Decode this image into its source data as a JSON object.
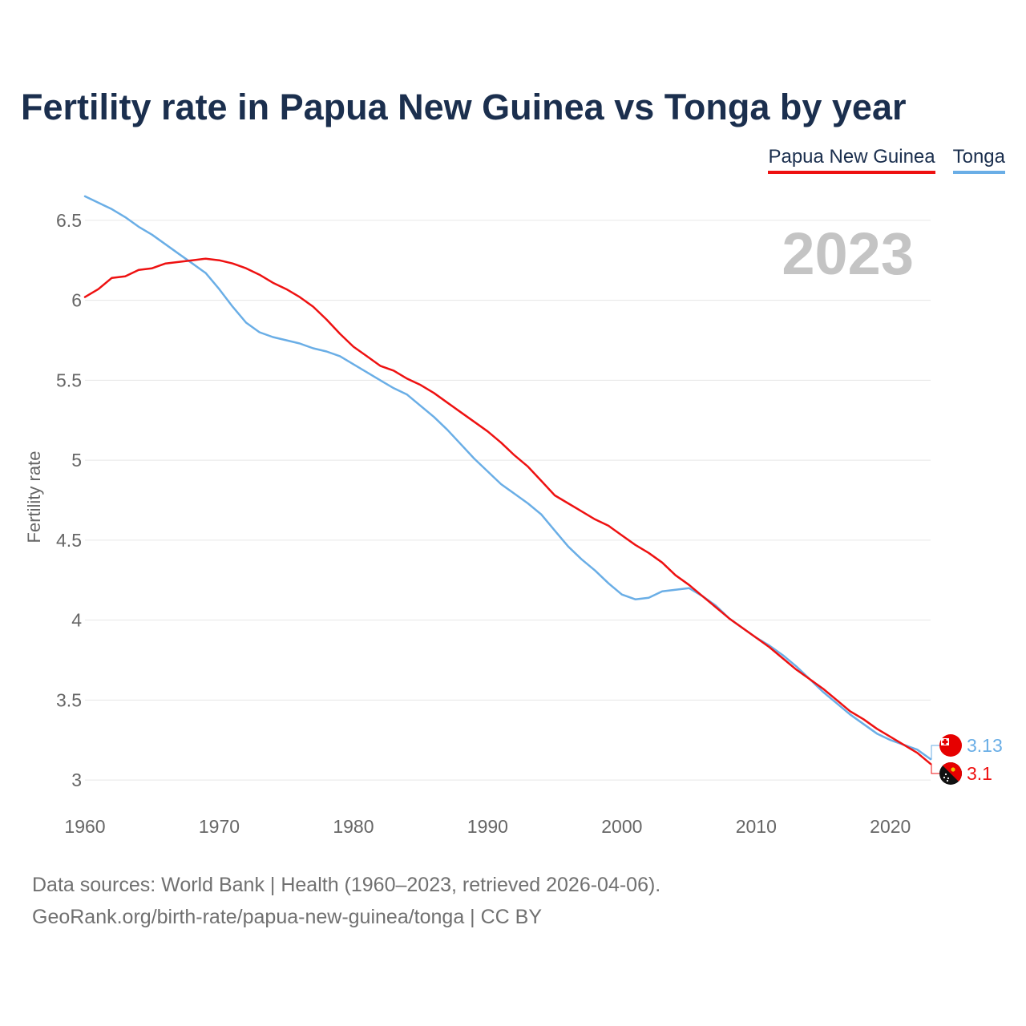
{
  "title": "Fertility rate in Papua New Guinea vs Tonga by year",
  "legend": {
    "items": [
      {
        "label": "Papua New Guinea",
        "color": "#ee1111"
      },
      {
        "label": "Tonga",
        "color": "#6aaee6"
      }
    ]
  },
  "footer": {
    "line1": "Data sources: World Bank | Health (1960–2023, retrieved 2026-04-06).",
    "line2": "GeoRank.org/birth-rate/papua-new-guinea/tonga | CC BY"
  },
  "chart_data": {
    "type": "line",
    "title": "Fertility rate in Papua New Guinea vs Tonga by year",
    "xlabel": "",
    "ylabel": "Fertility rate",
    "year_label": "2023",
    "xlim": [
      1960,
      2023
    ],
    "ylim": [
      2.85,
      6.75
    ],
    "x_ticks": [
      1960,
      1970,
      1980,
      1990,
      2000,
      2010,
      2020
    ],
    "y_ticks": [
      3,
      3.5,
      4,
      4.5,
      5,
      5.5,
      6,
      6.5
    ],
    "y_tick_labels": [
      "3",
      "3.5",
      "4",
      "4.5",
      "5",
      "5.5",
      "6",
      "6.5"
    ],
    "grid": true,
    "x": [
      1960,
      1961,
      1962,
      1963,
      1964,
      1965,
      1966,
      1967,
      1968,
      1969,
      1970,
      1971,
      1972,
      1973,
      1974,
      1975,
      1976,
      1977,
      1978,
      1979,
      1980,
      1981,
      1982,
      1983,
      1984,
      1985,
      1986,
      1987,
      1988,
      1989,
      1990,
      1991,
      1992,
      1993,
      1994,
      1995,
      1996,
      1997,
      1998,
      1999,
      2000,
      2001,
      2002,
      2003,
      2004,
      2005,
      2006,
      2007,
      2008,
      2009,
      2010,
      2011,
      2012,
      2013,
      2014,
      2015,
      2016,
      2017,
      2018,
      2019,
      2020,
      2021,
      2022,
      2023
    ],
    "series": [
      {
        "name": "Papua New Guinea",
        "color": "#ee1111",
        "end_label": "3.1",
        "icon": "papua-new-guinea-flag-icon",
        "values": [
          6.02,
          6.07,
          6.14,
          6.15,
          6.19,
          6.2,
          6.23,
          6.24,
          6.25,
          6.26,
          6.25,
          6.23,
          6.2,
          6.16,
          6.11,
          6.07,
          6.02,
          5.96,
          5.88,
          5.79,
          5.71,
          5.65,
          5.59,
          5.56,
          5.51,
          5.47,
          5.42,
          5.36,
          5.3,
          5.24,
          5.18,
          5.11,
          5.03,
          4.96,
          4.87,
          4.78,
          4.73,
          4.68,
          4.63,
          4.59,
          4.53,
          4.47,
          4.42,
          4.36,
          4.28,
          4.22,
          4.15,
          4.08,
          4.01,
          3.95,
          3.89,
          3.83,
          3.76,
          3.69,
          3.63,
          3.57,
          3.5,
          3.43,
          3.38,
          3.32,
          3.27,
          3.22,
          3.17,
          3.1
        ]
      },
      {
        "name": "Tonga",
        "color": "#6aaee6",
        "end_label": "3.13",
        "icon": "tonga-flag-icon",
        "values": [
          6.65,
          6.61,
          6.57,
          6.52,
          6.46,
          6.41,
          6.35,
          6.29,
          6.23,
          6.17,
          6.07,
          5.96,
          5.86,
          5.8,
          5.77,
          5.75,
          5.73,
          5.7,
          5.68,
          5.65,
          5.6,
          5.55,
          5.5,
          5.45,
          5.41,
          5.34,
          5.27,
          5.19,
          5.1,
          5.01,
          4.93,
          4.85,
          4.79,
          4.73,
          4.66,
          4.56,
          4.46,
          4.38,
          4.31,
          4.23,
          4.16,
          4.13,
          4.14,
          4.18,
          4.19,
          4.2,
          4.15,
          4.09,
          4.01,
          3.95,
          3.89,
          3.84,
          3.78,
          3.71,
          3.63,
          3.55,
          3.48,
          3.41,
          3.35,
          3.29,
          3.25,
          3.22,
          3.19,
          3.13
        ]
      }
    ]
  }
}
